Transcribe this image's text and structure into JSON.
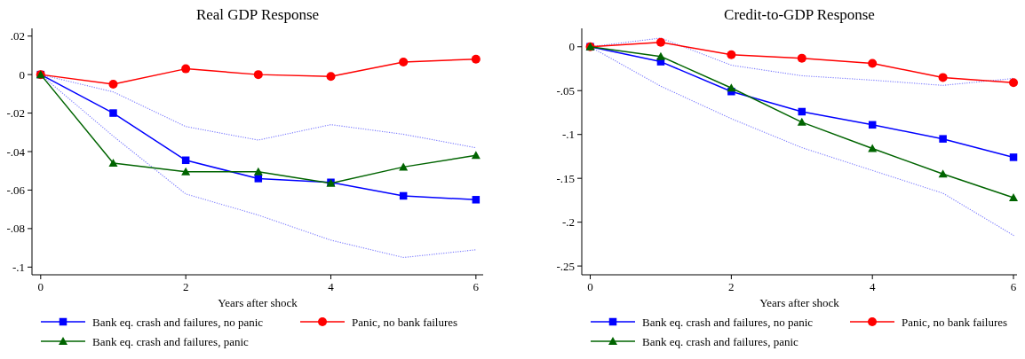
{
  "chart_data": [
    {
      "type": "line",
      "title": "Real GDP Response",
      "xlabel": "Years after shock",
      "x": [
        0,
        1,
        2,
        3,
        4,
        5,
        6
      ],
      "xlim": [
        -0.12,
        6.1
      ],
      "xticks": [
        0,
        2,
        4,
        6
      ],
      "ylim": [
        -0.104,
        0.024
      ],
      "yticks": [
        {
          "value": 0.02,
          "label": ".02"
        },
        0,
        {
          "value": -0.02,
          "label": "-.02"
        },
        {
          "value": -0.04,
          "label": "-.04"
        },
        {
          "value": -0.06,
          "label": "-.06"
        },
        {
          "value": -0.08,
          "label": "-.08"
        },
        {
          "value": -0.1,
          "label": "-.1"
        }
      ],
      "grid": false,
      "legend": "bottom",
      "series": [
        {
          "name": "Bank eq. crash and failures, no panic",
          "color": "#0000ff",
          "marker": "square",
          "values": [
            0,
            -0.02,
            -0.0445,
            -0.054,
            -0.056,
            -0.063,
            -0.065
          ]
        },
        {
          "color": "#8080ff",
          "marker": "none",
          "line_style": "dotted",
          "values": [
            0,
            -0.032,
            -0.062,
            -0.073,
            -0.086,
            -0.095,
            -0.091
          ]
        },
        {
          "color": "#8080ff",
          "marker": "none",
          "line_style": "dotted",
          "values": [
            0,
            -0.009,
            -0.027,
            -0.034,
            -0.026,
            -0.031,
            -0.038
          ]
        },
        {
          "name": "Panic, no bank failures",
          "color": "#ff0000",
          "marker": "circle",
          "values": [
            0,
            -0.005,
            0.003,
            0,
            -0.001,
            0.0065,
            0.008
          ]
        },
        {
          "name": "Bank eq. crash and failures, panic",
          "color": "#006400",
          "marker": "triangle",
          "values": [
            0,
            -0.046,
            -0.0505,
            -0.0505,
            -0.0565,
            -0.048,
            -0.042
          ]
        }
      ]
    },
    {
      "type": "line",
      "title": "Credit-to-GDP Response",
      "xlabel": "Years after shock",
      "x": [
        0,
        1,
        2,
        3,
        4,
        5,
        6
      ],
      "xlim": [
        -0.12,
        6.05
      ],
      "xticks": [
        0,
        2,
        4,
        6
      ],
      "ylim": [
        -0.26,
        0.021
      ],
      "yticks": [
        0,
        {
          "value": -0.05,
          "label": "-.05"
        },
        {
          "value": -0.1,
          "label": "-.1"
        },
        {
          "value": -0.15,
          "label": "-.15"
        },
        {
          "value": -0.2,
          "label": "-.2"
        },
        {
          "value": -0.25,
          "label": "-.25"
        }
      ],
      "grid": false,
      "legend": "bottom",
      "series": [
        {
          "name": "Bank eq. crash and failures, no panic",
          "color": "#0000ff",
          "marker": "square",
          "values": [
            0,
            -0.017,
            -0.051,
            -0.074,
            -0.089,
            -0.105,
            -0.126
          ]
        },
        {
          "color": "#8080ff",
          "marker": "none",
          "line_style": "dotted",
          "values": [
            0,
            -0.045,
            -0.082,
            -0.115,
            -0.141,
            -0.167,
            -0.215
          ]
        },
        {
          "color": "#8080ff",
          "marker": "none",
          "line_style": "dotted",
          "values": [
            0,
            0.01,
            -0.021,
            -0.033,
            -0.038,
            -0.044,
            -0.036
          ]
        },
        {
          "name": "Panic, no bank failures",
          "color": "#ff0000",
          "marker": "circle",
          "values": [
            0,
            0.005,
            -0.009,
            -0.013,
            -0.019,
            -0.035,
            -0.041
          ]
        },
        {
          "name": "Bank eq. crash and failures, panic",
          "color": "#006400",
          "marker": "triangle",
          "values": [
            0,
            -0.011,
            -0.047,
            -0.086,
            -0.116,
            -0.145,
            -0.172
          ]
        }
      ]
    }
  ]
}
